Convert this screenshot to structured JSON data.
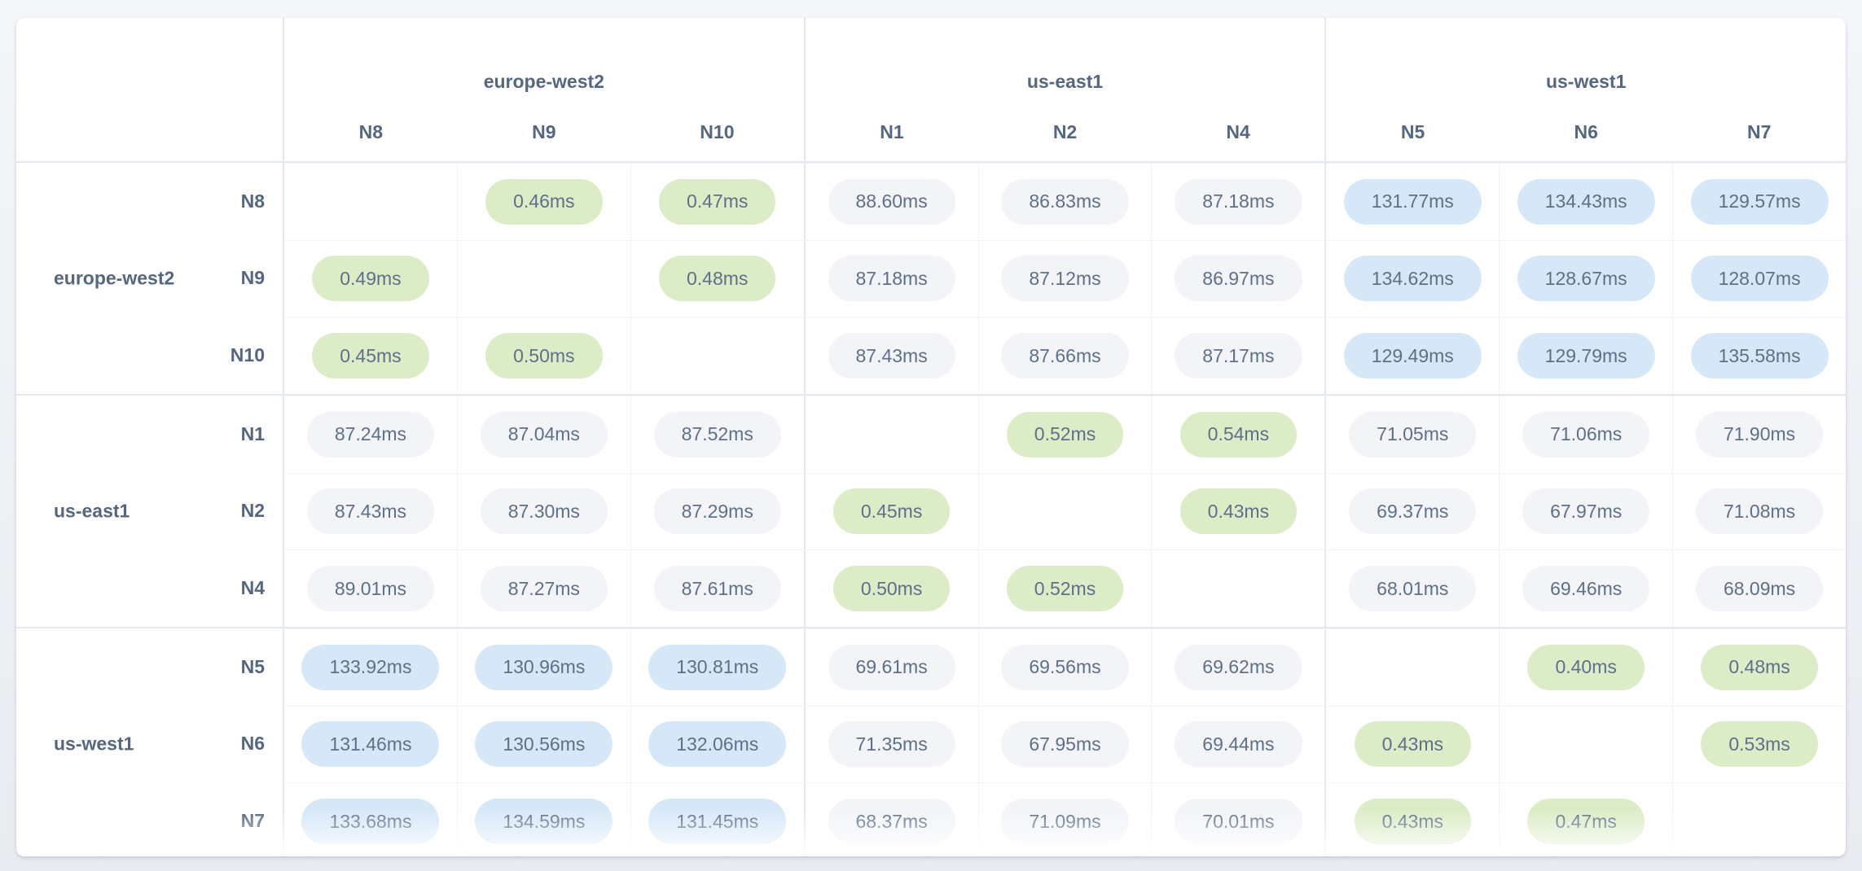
{
  "table": {
    "unit": "ms",
    "column_groups": [
      {
        "region": "europe-west2",
        "nodes": [
          "N8",
          "N9",
          "N10"
        ]
      },
      {
        "region": "us-east1",
        "nodes": [
          "N1",
          "N2",
          "N4"
        ]
      },
      {
        "region": "us-west1",
        "nodes": [
          "N5",
          "N6",
          "N7"
        ]
      }
    ],
    "row_groups": [
      {
        "region": "europe-west2",
        "nodes": [
          "N8",
          "N9",
          "N10"
        ]
      },
      {
        "region": "us-east1",
        "nodes": [
          "N1",
          "N2",
          "N4"
        ]
      },
      {
        "region": "us-west1",
        "nodes": [
          "N5",
          "N6",
          "N7"
        ]
      }
    ],
    "cells": [
      [
        "",
        "0.46ms",
        "0.47ms",
        "88.60ms",
        "86.83ms",
        "87.18ms",
        "131.77ms",
        "134.43ms",
        "129.57ms"
      ],
      [
        "0.49ms",
        "",
        "0.48ms",
        "87.18ms",
        "87.12ms",
        "86.97ms",
        "134.62ms",
        "128.67ms",
        "128.07ms"
      ],
      [
        "0.45ms",
        "0.50ms",
        "",
        "87.43ms",
        "87.66ms",
        "87.17ms",
        "129.49ms",
        "129.79ms",
        "135.58ms"
      ],
      [
        "87.24ms",
        "87.04ms",
        "87.52ms",
        "",
        "0.52ms",
        "0.54ms",
        "71.05ms",
        "71.06ms",
        "71.90ms"
      ],
      [
        "87.43ms",
        "87.30ms",
        "87.29ms",
        "0.45ms",
        "",
        "0.43ms",
        "69.37ms",
        "67.97ms",
        "71.08ms"
      ],
      [
        "89.01ms",
        "87.27ms",
        "87.61ms",
        "0.50ms",
        "0.52ms",
        "",
        "68.01ms",
        "69.46ms",
        "68.09ms"
      ],
      [
        "133.92ms",
        "130.96ms",
        "130.81ms",
        "69.61ms",
        "69.56ms",
        "69.62ms",
        "",
        "0.40ms",
        "0.48ms"
      ],
      [
        "131.46ms",
        "130.56ms",
        "132.06ms",
        "71.35ms",
        "67.95ms",
        "69.44ms",
        "0.43ms",
        "",
        "0.53ms"
      ],
      [
        "133.68ms",
        "134.59ms",
        "131.45ms",
        "68.37ms",
        "71.09ms",
        "70.01ms",
        "0.43ms",
        "0.47ms",
        ""
      ]
    ]
  },
  "colors": {
    "latency_low_bg": "#dcecc7",
    "latency_mid_bg": "#f2f4f8",
    "latency_high_bg": "#d6e8f8",
    "pill_text": "#5e7089",
    "label_text": "#55667f"
  }
}
